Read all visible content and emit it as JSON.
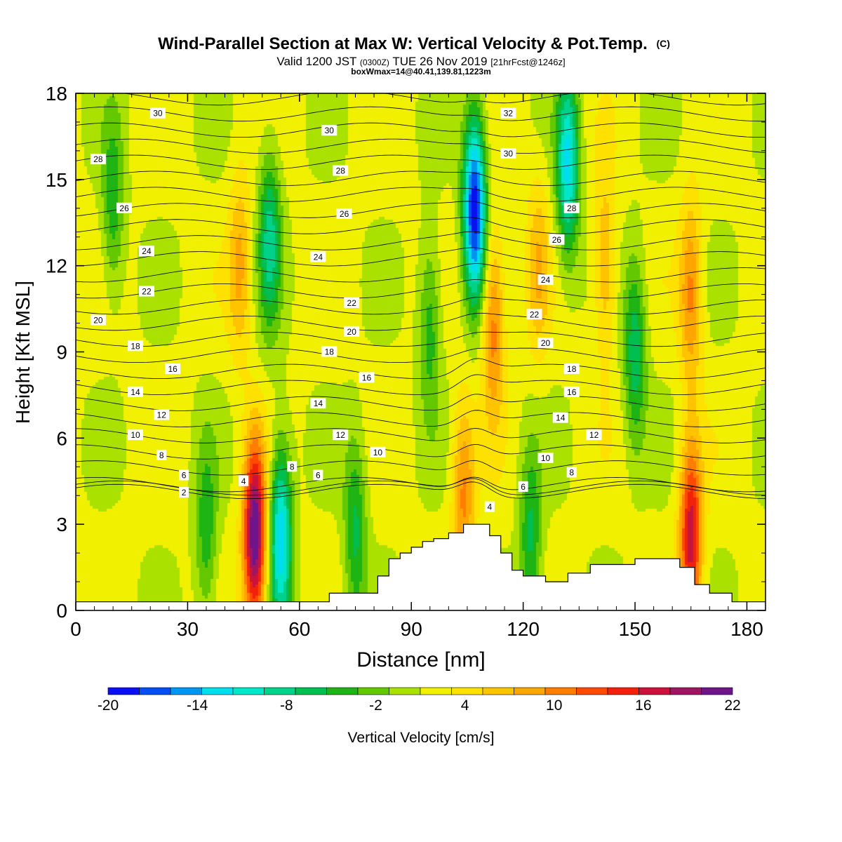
{
  "chart_data": {
    "type": "heatmap",
    "title": "Wind-Parallel Section at Max W: Vertical Velocity & Pot.Temp.",
    "title_mark": "(C)",
    "subtitle_valid": "Valid 1200 JST",
    "subtitle_z": "(0300Z)",
    "subtitle_date": "TUE 26 Nov 2019",
    "subtitle_fcst": "[21hrFcst@1246z]",
    "subtitle2": "boxWmax=14@40.41,139.81,1223m",
    "xlabel": "Distance [nm]",
    "ylabel": "Height [Kft MSL]",
    "xlim": [
      0,
      185
    ],
    "ylim": [
      0,
      18
    ],
    "x_ticks": [
      0,
      30,
      60,
      90,
      120,
      150,
      180
    ],
    "y_ticks": [
      0,
      3,
      6,
      9,
      12,
      15,
      18
    ],
    "colorbar": {
      "label": "Vertical Velocity [cm/s]",
      "min": -20,
      "max": 22,
      "step": 2,
      "tick_values": [
        -20,
        -14,
        -8,
        -2,
        4,
        10,
        16,
        22
      ],
      "colors": [
        "#0a10f0",
        "#0050f0",
        "#0096f0",
        "#00dcf0",
        "#00e6c8",
        "#00d28c",
        "#00be50",
        "#1eb414",
        "#64c800",
        "#aae100",
        "#f0f000",
        "#ffe100",
        "#ffc300",
        "#ffa500",
        "#ff7d00",
        "#ff4b00",
        "#f0230a",
        "#c8143c",
        "#a01464",
        "#6e148c"
      ]
    },
    "terrain": {
      "x": [
        0,
        6,
        12,
        18,
        24,
        30,
        36,
        42,
        48,
        54,
        60,
        66,
        68,
        72,
        78,
        81,
        84,
        87,
        90,
        93,
        96,
        100,
        104,
        108,
        111,
        114,
        117,
        120,
        126,
        132,
        138,
        144,
        150,
        156,
        162,
        166,
        170,
        176,
        180,
        185
      ],
      "h": [
        0.3,
        0.3,
        0.3,
        0.3,
        0.3,
        0.3,
        0.3,
        0.3,
        0.3,
        0.3,
        0.3,
        0.3,
        0.6,
        0.6,
        0.6,
        1.2,
        1.8,
        2.0,
        2.2,
        2.4,
        2.5,
        2.7,
        3.0,
        3.0,
        2.6,
        2.0,
        1.4,
        1.2,
        1.0,
        1.3,
        1.6,
        1.6,
        1.8,
        1.8,
        1.5,
        0.9,
        0.6,
        0.3,
        0.3,
        0.3
      ]
    },
    "w_features": [
      {
        "x": 48,
        "z": 2.6,
        "w": 20
      },
      {
        "x": 55,
        "z": 2.6,
        "w": -14
      },
      {
        "x": 35,
        "z": 2.6,
        "w": -6
      },
      {
        "x": 75,
        "z": 2.8,
        "w": -7
      },
      {
        "x": 107,
        "z": 14.0,
        "w": -20
      },
      {
        "x": 112,
        "z": 10.0,
        "w": 9
      },
      {
        "x": 132,
        "z": 15.5,
        "w": -13
      },
      {
        "x": 165,
        "z": 2.6,
        "w": 15
      },
      {
        "x": 165,
        "z": 11.0,
        "w": 8
      },
      {
        "x": 52,
        "z": 13.0,
        "w": -9
      },
      {
        "x": 44,
        "z": 12.0,
        "w": 6
      },
      {
        "x": 124,
        "z": 12.0,
        "w": 5
      },
      {
        "x": 142,
        "z": 12.0,
        "w": 6
      },
      {
        "x": 150,
        "z": 9.0,
        "w": -8
      },
      {
        "x": 10,
        "z": 14.0,
        "w": -6
      },
      {
        "x": 122,
        "z": 2.5,
        "w": -7
      },
      {
        "x": 104,
        "z": 4.0,
        "w": 8
      },
      {
        "x": 95,
        "z": 10.0,
        "w": -6
      }
    ],
    "theta_contours": [
      2,
      4,
      6,
      8,
      10,
      12,
      14,
      16,
      18,
      20,
      22,
      24,
      26,
      28,
      30,
      32
    ],
    "contour_labels": [
      {
        "text": "30",
        "x": 22,
        "z": 17.3
      },
      {
        "text": "28",
        "x": 6,
        "z": 15.7
      },
      {
        "text": "26",
        "x": 13,
        "z": 14.0
      },
      {
        "text": "24",
        "x": 19,
        "z": 12.5
      },
      {
        "text": "22",
        "x": 19,
        "z": 11.1
      },
      {
        "text": "20",
        "x": 6,
        "z": 10.1
      },
      {
        "text": "18",
        "x": 16,
        "z": 9.2
      },
      {
        "text": "16",
        "x": 26,
        "z": 8.4
      },
      {
        "text": "14",
        "x": 16,
        "z": 7.6
      },
      {
        "text": "12",
        "x": 23,
        "z": 6.8
      },
      {
        "text": "10",
        "x": 16,
        "z": 6.1
      },
      {
        "text": "8",
        "x": 23,
        "z": 5.4
      },
      {
        "text": "6",
        "x": 29,
        "z": 4.7
      },
      {
        "text": "4",
        "x": 45,
        "z": 4.5
      },
      {
        "text": "2",
        "x": 29,
        "z": 4.1
      },
      {
        "text": "30",
        "x": 68,
        "z": 16.7
      },
      {
        "text": "28",
        "x": 71,
        "z": 15.3
      },
      {
        "text": "26",
        "x": 72,
        "z": 13.8
      },
      {
        "text": "24",
        "x": 65,
        "z": 12.3
      },
      {
        "text": "22",
        "x": 74,
        "z": 10.7
      },
      {
        "text": "20",
        "x": 74,
        "z": 9.7
      },
      {
        "text": "18",
        "x": 68,
        "z": 9.0
      },
      {
        "text": "16",
        "x": 78,
        "z": 8.1
      },
      {
        "text": "14",
        "x": 65,
        "z": 7.2
      },
      {
        "text": "12",
        "x": 71,
        "z": 6.1
      },
      {
        "text": "10",
        "x": 81,
        "z": 5.5
      },
      {
        "text": "8",
        "x": 58,
        "z": 5.0
      },
      {
        "text": "6",
        "x": 65,
        "z": 4.7
      },
      {
        "text": "32",
        "x": 116,
        "z": 17.3
      },
      {
        "text": "30",
        "x": 116,
        "z": 15.9
      },
      {
        "text": "28",
        "x": 133,
        "z": 14.0
      },
      {
        "text": "26",
        "x": 129,
        "z": 12.9
      },
      {
        "text": "24",
        "x": 126,
        "z": 11.5
      },
      {
        "text": "22",
        "x": 123,
        "z": 10.3
      },
      {
        "text": "20",
        "x": 126,
        "z": 9.3
      },
      {
        "text": "18",
        "x": 133,
        "z": 8.4
      },
      {
        "text": "16",
        "x": 133,
        "z": 7.6
      },
      {
        "text": "14",
        "x": 130,
        "z": 6.7
      },
      {
        "text": "12",
        "x": 139,
        "z": 6.1
      },
      {
        "text": "10",
        "x": 126,
        "z": 5.3
      },
      {
        "text": "8",
        "x": 133,
        "z": 4.8
      },
      {
        "text": "6",
        "x": 120,
        "z": 4.3
      },
      {
        "text": "4",
        "x": 111,
        "z": 3.6
      }
    ]
  }
}
